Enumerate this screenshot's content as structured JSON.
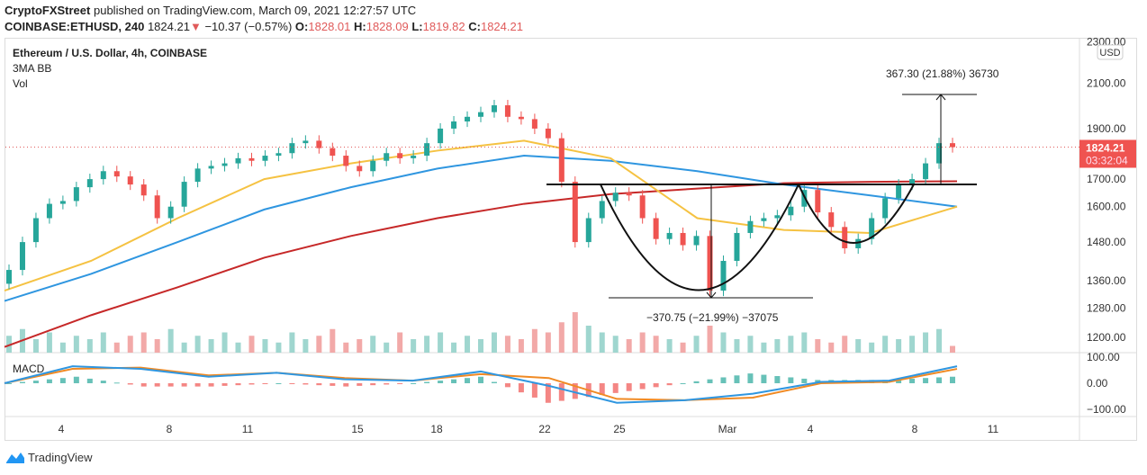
{
  "header": {
    "publisher": "CryptoFXStreet",
    "published_text": "published on TradingView.com, March 09, 2021 12:27:57 UTC",
    "symbol": "COINBASE:ETHUSD, 240",
    "last": "1824.21",
    "change": "−10.37 (−0.57%)",
    "o_label": "O:",
    "o": "1828.01",
    "h_label": "H:",
    "h": "1828.09",
    "l_label": "L:",
    "l": "1819.82",
    "c_label": "C:",
    "c": "1824.21"
  },
  "legend": {
    "title": "Ethereum / U.S. Dollar, 4h, COINBASE",
    "ind1": "3MA BB",
    "ind2": "Vol",
    "macd": "MACD"
  },
  "price_label": {
    "value": "1824.21",
    "countdown": "03:32:04",
    "currency": "USD"
  },
  "annotations": {
    "upper": "367.30 (21.88%) 36730",
    "lower": "−370.75 (−21.99%) −37075"
  },
  "branding": "TradingView",
  "colors": {
    "up": "#26a69a",
    "down": "#ef5350",
    "ma_fast": "#f5c242",
    "ma_mid": "#2f96e0",
    "ma_slow": "#c62828",
    "macd": "#2f96e0",
    "signal": "#f08a24"
  },
  "chart_data": {
    "type": "candlestick",
    "y_scale": "log",
    "y_ticks": [
      "2300.00",
      "2100.00",
      "1900.00",
      "1700.00",
      "1600.00",
      "1480.00",
      "1360.00",
      "1280.00",
      "1200.00"
    ],
    "x_ticks": [
      "4",
      "8",
      "11",
      "15",
      "18",
      "22",
      "25",
      "Mar",
      "4",
      "8",
      "11"
    ],
    "macd_ticks": [
      "100.00",
      "0.00",
      "−100.00"
    ],
    "closes": [
      1392,
      1480,
      1560,
      1610,
      1620,
      1670,
      1700,
      1730,
      1710,
      1680,
      1640,
      1560,
      1600,
      1690,
      1740,
      1750,
      1760,
      1780,
      1770,
      1790,
      1800,
      1840,
      1850,
      1820,
      1790,
      1750,
      1730,
      1770,
      1800,
      1780,
      1790,
      1840,
      1900,
      1930,
      1950,
      1970,
      2000,
      1950,
      1940,
      1900,
      1860,
      1690,
      1480,
      1560,
      1620,
      1650,
      1640,
      1560,
      1490,
      1510,
      1470,
      1500,
      1330,
      1420,
      1510,
      1550,
      1560,
      1570,
      1600,
      1660,
      1580,
      1530,
      1460,
      1490,
      1560,
      1630,
      1680,
      1700,
      1760,
      1840,
      1824
    ],
    "ma_fast": [
      1330,
      1420,
      1560,
      1700,
      1760,
      1810,
      1850,
      1780,
      1560,
      1520,
      1510,
      1600
    ],
    "ma_mid": [
      1300,
      1380,
      1480,
      1590,
      1670,
      1740,
      1790,
      1770,
      1730,
      1680,
      1640,
      1600
    ],
    "ma_slow": [
      1175,
      1260,
      1340,
      1430,
      1500,
      1560,
      1610,
      1645,
      1665,
      1685,
      1690,
      1692
    ],
    "volume": [
      5,
      7,
      4,
      6,
      3,
      5,
      4,
      6,
      3,
      5,
      6,
      4,
      7,
      3,
      5,
      4,
      6,
      3,
      5,
      4,
      3,
      6,
      4,
      5,
      7,
      3,
      4,
      5,
      3,
      6,
      4,
      5,
      6,
      3,
      5,
      4,
      6,
      5,
      4,
      7,
      6,
      9,
      12,
      8,
      6,
      5,
      4,
      6,
      5,
      4,
      3,
      5,
      8,
      6,
      4,
      5,
      3,
      4,
      5,
      6,
      4,
      3,
      5,
      4,
      3,
      5,
      4,
      5,
      6,
      7,
      2
    ],
    "macd": [
      0,
      65,
      55,
      25,
      40,
      15,
      10,
      45,
      -10,
      -75,
      -65,
      -40,
      5,
      10,
      65
    ],
    "signal": [
      0,
      55,
      60,
      30,
      40,
      20,
      10,
      35,
      20,
      -60,
      -65,
      -55,
      0,
      5,
      55
    ]
  }
}
